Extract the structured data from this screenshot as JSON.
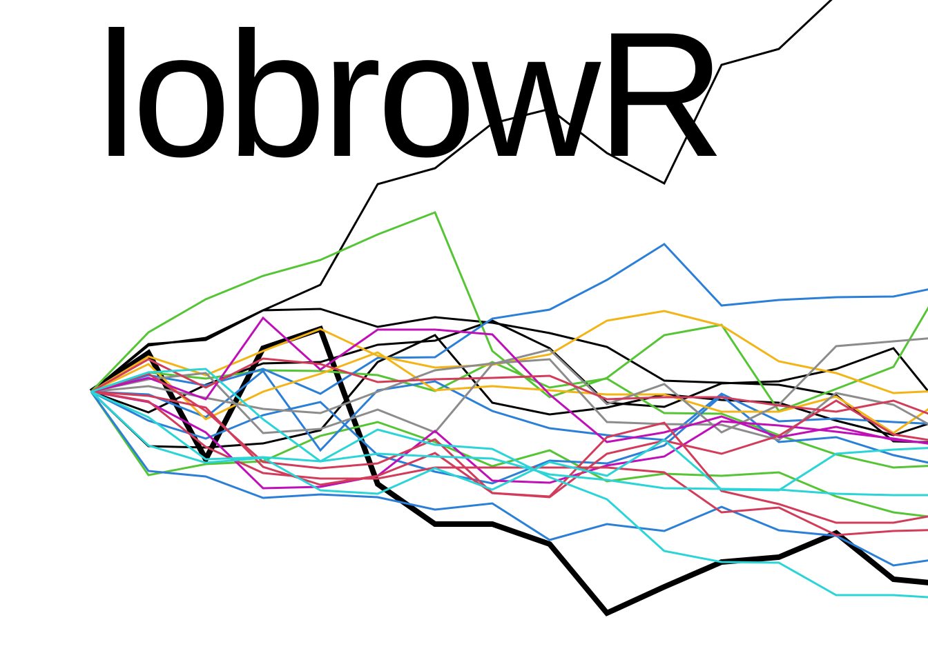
{
  "logo": {
    "text": "lobrowR"
  },
  "walks": {
    "steps": 15,
    "x_step": 83,
    "series": [
      {
        "name": "black-bold",
        "color": "#000000",
        "width": 8,
        "values": [
          0,
          56,
          -98,
          63,
          91,
          -134,
          -192,
          -192,
          -221,
          -321,
          -283,
          -247,
          -240,
          -205,
          -272,
          -280
        ]
      },
      {
        "name": "black-1",
        "color": "#000000",
        "width": 3,
        "values": [
          0,
          67,
          78,
          118,
          155,
          301,
          324,
          389,
          410,
          346,
          302,
          474,
          497,
          575,
          650,
          750
        ]
      },
      {
        "name": "black-2",
        "color": "#000000",
        "width": 3,
        "values": [
          0,
          69,
          75,
          118,
          120,
          94,
          108,
          100,
          85,
          65,
          16,
          13,
          10,
          -5,
          -72,
          -74
        ]
      },
      {
        "name": "black-3",
        "color": "#000000",
        "width": 3,
        "values": [
          0,
          -30,
          10,
          41,
          43,
          68,
          74,
          103,
          63,
          -16,
          -22,
          12,
          15,
          33,
          63,
          -40
        ]
      },
      {
        "name": "black-4",
        "color": "#000000",
        "width": 3,
        "values": [
          0,
          -79,
          -81,
          -75,
          -56,
          43,
          82,
          -16,
          -33,
          -23,
          -4,
          -12,
          -16,
          -42,
          -63,
          -36
        ]
      },
      {
        "name": "green-1",
        "color": "#55c435",
        "width": 3,
        "values": [
          0,
          86,
          134,
          168,
          191,
          228,
          260,
          59,
          -8,
          20,
          82,
          97,
          -28,
          4,
          36,
          177
        ]
      },
      {
        "name": "green-2",
        "color": "#55c435",
        "width": 3,
        "values": [
          0,
          28,
          19,
          31,
          30,
          24,
          1,
          43,
          6,
          19,
          -31,
          -32,
          -63,
          -91,
          -110,
          -106
        ]
      },
      {
        "name": "green-3",
        "color": "#55c435",
        "width": 3,
        "values": [
          0,
          -121,
          -105,
          -101,
          -64,
          -44,
          -73,
          -108,
          -85,
          -130,
          -119,
          -122,
          -117,
          -152,
          -175,
          -185
        ]
      },
      {
        "name": "blue-1",
        "color": "#2b7fd6",
        "width": 3,
        "values": [
          0,
          24,
          9,
          33,
          -3,
          49,
          50,
          106,
          119,
          162,
          214,
          125,
          133,
          137,
          138,
          155
        ]
      },
      {
        "name": "blue-2",
        "color": "#2b7fd6",
        "width": 3,
        "values": [
          0,
          -4,
          -37,
          30,
          -85,
          2,
          15,
          -28,
          -53,
          -63,
          -70,
          -3,
          -43,
          -39,
          -44,
          -48
        ]
      },
      {
        "name": "blue-3",
        "color": "#2b7fd6",
        "width": 3,
        "values": [
          0,
          -115,
          -123,
          -154,
          -149,
          -153,
          -171,
          -162,
          -215,
          -192,
          -202,
          -167,
          -201,
          -209,
          -252,
          -240
        ]
      },
      {
        "name": "blue-4",
        "color": "#2b7fd6",
        "width": 3,
        "values": [
          0,
          -42,
          -68,
          -34,
          -15,
          -92,
          -116,
          -133,
          -100,
          -104,
          -78,
          -6,
          -73,
          -66,
          -92,
          -110
        ]
      },
      {
        "name": "yellow-1",
        "color": "#f2b416",
        "width": 3,
        "values": [
          0,
          51,
          24,
          59,
          91,
          52,
          35,
          39,
          54,
          103,
          117,
          96,
          44,
          27,
          -2,
          2
        ]
      },
      {
        "name": "yellow-2",
        "color": "#f2b416",
        "width": 3,
        "values": [
          0,
          40,
          -40,
          0,
          26,
          57,
          2,
          8,
          2,
          -4,
          -4,
          -29,
          -29,
          -7,
          -60,
          -3
        ]
      },
      {
        "name": "gray-1",
        "color": "#8c8c8c",
        "width": 3,
        "values": [
          0,
          8,
          -9,
          -25,
          -31,
          0,
          31,
          41,
          47,
          -44,
          -47,
          -48,
          -70,
          -2,
          -19,
          -65
        ]
      },
      {
        "name": "gray-2",
        "color": "#8c8c8c",
        "width": 3,
        "values": [
          0,
          18,
          27,
          -60,
          -54,
          -26,
          -59,
          40,
          61,
          -18,
          11,
          -59,
          -19,
          66,
          73,
          80
        ]
      },
      {
        "name": "magenta-1",
        "color": "#bf10b7",
        "width": 3,
        "values": [
          0,
          20,
          -11,
          107,
          32,
          90,
          90,
          83,
          -4,
          -73,
          -59,
          -36,
          -66,
          -51,
          -70,
          -77
        ]
      },
      {
        "name": "magenta-2",
        "color": "#bf10b7",
        "width": 3,
        "values": [
          0,
          -15,
          -59,
          -140,
          -138,
          -122,
          -57,
          -129,
          -132,
          -107,
          -94,
          -43,
          -49,
          -58,
          -68,
          -80
        ]
      },
      {
        "name": "crimson-1",
        "color": "#d13c5a",
        "width": 3,
        "values": [
          0,
          47,
          6,
          48,
          40,
          14,
          18,
          20,
          23,
          -11,
          -8,
          -8,
          -20,
          -29,
          -13,
          -44
        ]
      },
      {
        "name": "crimson-2",
        "color": "#d13c5a",
        "width": 3,
        "values": [
          0,
          26,
          -28,
          -102,
          -111,
          -104,
          -69,
          -147,
          -152,
          -66,
          -45,
          -144,
          -163,
          -190,
          -190,
          -175
        ]
      },
      {
        "name": "crimson-3",
        "color": "#d13c5a",
        "width": 3,
        "values": [
          0,
          -6,
          -23,
          -109,
          -135,
          -122,
          -89,
          -147,
          -153,
          -90,
          -71,
          -90,
          -64,
          -13,
          -62,
          -75
        ]
      },
      {
        "name": "crimson-4",
        "color": "#d13c5a",
        "width": 3,
        "values": [
          0,
          -14,
          -80,
          -118,
          -126,
          -126,
          -110,
          -110,
          -110,
          -110,
          -117,
          -175,
          -168,
          -208,
          -202,
          -200
        ]
      },
      {
        "name": "cyan-1",
        "color": "#2bd4d6",
        "width": 3,
        "values": [
          0,
          28,
          33,
          -40,
          -101,
          -55,
          -77,
          -83,
          -124,
          -156,
          -231,
          -247,
          -248,
          -295,
          -295,
          -300
        ]
      },
      {
        "name": "cyan-2",
        "color": "#2bd4d6",
        "width": 3,
        "values": [
          0,
          -78,
          -103,
          -96,
          -143,
          -148,
          -111,
          -142,
          -102,
          -122,
          -70,
          -142,
          -143,
          -90,
          -84,
          -80
        ]
      },
      {
        "name": "cyan-3",
        "color": "#2bd4d6",
        "width": 3,
        "values": [
          0,
          -37,
          -98,
          -95,
          -101,
          -90,
          -94,
          -97,
          -120,
          -128,
          -140,
          -141,
          -142,
          -148,
          -150,
          -150
        ]
      }
    ]
  }
}
